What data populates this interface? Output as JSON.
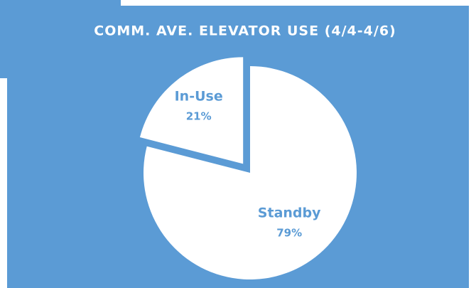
{
  "chart_data": {
    "type": "pie",
    "title": "COMM. AVE. ELEVATOR USE (4/4-4/6)",
    "categories": [
      "Standby",
      "In-Use"
    ],
    "values": [
      79,
      21
    ],
    "value_labels": [
      "79%",
      "21%"
    ],
    "colors": [
      "#ffffff",
      "#ffffff"
    ],
    "background": "#5b9bd5",
    "label_color": "#5b9bd5"
  }
}
